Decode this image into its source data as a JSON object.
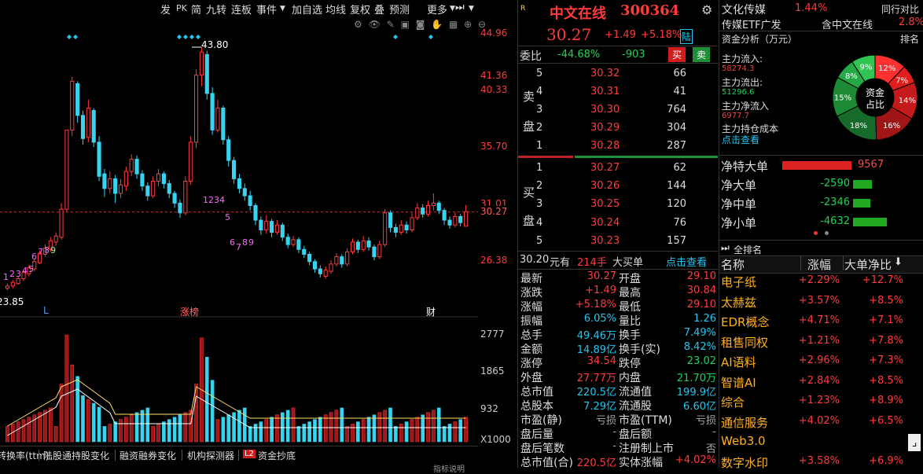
{
  "toolbar": {
    "items": [
      "发",
      "PK",
      "简",
      "九转",
      "连板",
      "事件",
      "加自选",
      "均线",
      "复权",
      "叠",
      "预测",
      "更多"
    ]
  },
  "price_axis": [
    "44.96",
    "41.36",
    "40.33",
    "35.70",
    "31.01",
    "30.27",
    "26.38"
  ],
  "volume_axis": [
    "2777",
    "1865",
    "932",
    "X1000"
  ],
  "chart_annotations": {
    "high_label": "43.80",
    "low_label": "23.85",
    "tag_L": "L",
    "tag_zhangbang": "涨榜",
    "tag_cai": "财",
    "seq_top": [
      "1",
      "2",
      "3",
      "4",
      "5"
    ],
    "seq_mid": [
      "6",
      "7",
      "8",
      "9"
    ],
    "seq_low": [
      "1",
      "2",
      "3",
      "4",
      "5"
    ],
    "seq_low2": [
      "6",
      "7",
      "8",
      "9"
    ]
  },
  "bottom_tabs": [
    "转换率(ttm)",
    "陆股通持股变化",
    "融资融券变化",
    "机构探测器",
    "L2",
    "资金抄底"
  ],
  "bottom_footer": "指标说明",
  "stock": {
    "name": "中文在线",
    "code": "300364",
    "price": "30.27",
    "change": "+1.49",
    "pct": "+5.18%",
    "badge": "陆"
  },
  "webi": {
    "label": "委比",
    "ratio": "-44.68%",
    "diff": "-903",
    "buy_btn": "买",
    "sell_btn": "卖"
  },
  "sell_side_label": [
    "卖",
    "盘"
  ],
  "buy_side_label": [
    "买",
    "盘"
  ],
  "asks": [
    {
      "level": "5",
      "price": "30.32",
      "vol": "66"
    },
    {
      "level": "4",
      "price": "30.31",
      "vol": "41"
    },
    {
      "level": "3",
      "price": "30.30",
      "vol": "764"
    },
    {
      "level": "2",
      "price": "30.29",
      "vol": "304"
    },
    {
      "level": "1",
      "price": "30.28",
      "vol": "287"
    }
  ],
  "bids": [
    {
      "level": "1",
      "price": "30.27",
      "vol": "62"
    },
    {
      "level": "2",
      "price": "30.26",
      "vol": "144"
    },
    {
      "level": "3",
      "price": "30.25",
      "vol": "120"
    },
    {
      "level": "4",
      "price": "30.24",
      "vol": "76"
    },
    {
      "level": "5",
      "price": "30.23",
      "vol": "157"
    }
  ],
  "big_order": {
    "price": "30.20",
    "unit": "元有",
    "qty": "214手",
    "label": "大买单",
    "link": "点击查看"
  },
  "stats": [
    [
      "最新",
      "30.27",
      "开盘",
      "29.10"
    ],
    [
      "涨跌",
      "+1.49",
      "最高",
      "30.84"
    ],
    [
      "涨幅",
      "+5.18%",
      "最低",
      "29.10"
    ],
    [
      "振幅",
      "6.05%",
      "量比",
      "1.26"
    ],
    [
      "总手",
      "49.46万",
      "换手",
      "7.49%"
    ],
    [
      "金额",
      "14.89亿",
      "换手(实)",
      "8.42%"
    ],
    [
      "涨停",
      "34.54",
      "跌停",
      "23.02"
    ],
    [
      "外盘",
      "27.77万",
      "内盘",
      "21.70万"
    ],
    [
      "总市值",
      "220.5亿",
      "流通值",
      "199.9亿"
    ],
    [
      "总股本",
      "7.29亿",
      "流通股",
      "6.60亿"
    ],
    [
      "市盈(静)",
      "亏损",
      "市盈(TTM)",
      "亏损"
    ],
    [
      "盘后量",
      "-",
      "盘后额",
      "-"
    ],
    [
      "盘后笔数",
      "-",
      "注册制上市",
      "否"
    ],
    [
      "总市值(合)",
      "220.5亿",
      "实体涨幅",
      "+4.02%"
    ]
  ],
  "sector": {
    "name": "文化传媒",
    "pct": "1.44%",
    "rank": "同行对比",
    "etf": "传媒ETF广发",
    "etf_tip": "含中文在线",
    "etf_pct": "2.8%"
  },
  "fund": {
    "title": "资金分析（万元）",
    "rank": "排名",
    "inflow_label": "主力流入:",
    "inflow": "58274.3",
    "outflow_label": "主力流出:",
    "outflow": "51296.6",
    "net_label": "主力净流入",
    "net": "6977.7",
    "cost_label": "主力持仓成本",
    "cost_link": "点击查看",
    "pie_center": [
      "资金",
      "占比"
    ],
    "pie_slices": [
      {
        "label": "12%",
        "value": 12,
        "color": "#ff3030"
      },
      {
        "label": "7%",
        "value": 7,
        "color": "#e01e1e"
      },
      {
        "label": "14%",
        "value": 14,
        "color": "#c41a1a"
      },
      {
        "label": "16%",
        "value": 16,
        "color": "#a01616"
      },
      {
        "label": "18%",
        "value": 18,
        "color": "#166b2a"
      },
      {
        "label": "15%",
        "value": 15,
        "color": "#1d8a36"
      },
      {
        "label": "8%",
        "value": 8,
        "color": "#25a944"
      },
      {
        "label": "9%",
        "value": 9,
        "color": "#30c452"
      }
    ]
  },
  "netflows": [
    {
      "label": "净特大单",
      "value": "9567",
      "num": 9567,
      "color": "#d22"
    },
    {
      "label": "净大单",
      "value": "-2590",
      "num": -2590,
      "color": "#2a2"
    },
    {
      "label": "净中单",
      "value": "-2346",
      "num": -2346,
      "color": "#2a2"
    },
    {
      "label": "净小单",
      "value": "-4632",
      "num": -4632,
      "color": "#2a2"
    }
  ],
  "concept": {
    "title": "全排名",
    "headers": [
      "名称",
      "涨幅",
      "大单净比"
    ],
    "rows": [
      [
        "电子纸",
        "+2.29%",
        "+12.7%"
      ],
      [
        "太赫兹",
        "+3.57%",
        "+8.5%"
      ],
      [
        "EDR概念",
        "+4.71%",
        "+7.1%"
      ],
      [
        "租售同权",
        "+1.21%",
        "+7.8%"
      ],
      [
        "AI语料",
        "+2.96%",
        "+7.3%"
      ],
      [
        "智谱AI",
        "+2.84%",
        "+8.5%"
      ],
      [
        "综合",
        "+1.23%",
        "+8.9%"
      ],
      [
        "通信服务",
        "+4.02%",
        "+6.5%"
      ],
      [
        "Web3.0",
        "",
        ""
      ],
      [
        "数字水印",
        "+3.58%",
        "+6.9%"
      ]
    ]
  }
}
